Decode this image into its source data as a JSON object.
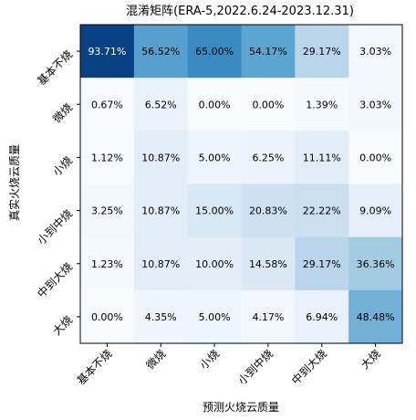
{
  "chart_data": {
    "type": "heatmap",
    "title": "混淆矩阵(ERA-5,2022.6.24-2023.12.31)",
    "xlabel": "预测火烧云质量",
    "ylabel": "真实火烧云质量",
    "x_categories": [
      "基本不烧",
      "微烧",
      "小烧",
      "小到中烧",
      "中到大烧",
      "大烧"
    ],
    "y_categories": [
      "基本不烧",
      "微烧",
      "小烧",
      "小到中烧",
      "中到大烧",
      "大烧"
    ],
    "values": [
      [
        93.71,
        56.52,
        65.0,
        54.17,
        29.17,
        3.03
      ],
      [
        0.67,
        6.52,
        0.0,
        0.0,
        1.39,
        3.03
      ],
      [
        1.12,
        10.87,
        5.0,
        6.25,
        11.11,
        0.0
      ],
      [
        3.25,
        10.87,
        15.0,
        20.83,
        22.22,
        9.09
      ],
      [
        1.23,
        10.87,
        10.0,
        14.58,
        29.17,
        36.36
      ],
      [
        0.0,
        4.35,
        5.0,
        4.17,
        6.94,
        48.48
      ]
    ],
    "cell_labels": [
      [
        "93.71%",
        "56.52%",
        "65.00%",
        "54.17%",
        "29.17%",
        "3.03%"
      ],
      [
        "0.67%",
        "6.52%",
        "0.00%",
        "0.00%",
        "1.39%",
        "3.03%"
      ],
      [
        "1.12%",
        "10.87%",
        "5.00%",
        "6.25%",
        "11.11%",
        "0.00%"
      ],
      [
        "3.25%",
        "10.87%",
        "15.00%",
        "20.83%",
        "22.22%",
        "9.09%"
      ],
      [
        "1.23%",
        "10.87%",
        "10.00%",
        "14.58%",
        "29.17%",
        "36.36%"
      ],
      [
        "0.00%",
        "4.35%",
        "5.00%",
        "4.17%",
        "6.94%",
        "48.48%"
      ]
    ],
    "colormap": "Blues",
    "colormap_stops": [
      "#f7fbff",
      "#deebf7",
      "#c6dbef",
      "#9ecae1",
      "#6baed6",
      "#4292c6",
      "#2171b5",
      "#08519c",
      "#08306b"
    ],
    "value_range": [
      0,
      100
    ],
    "grid": false,
    "legend": "none"
  }
}
